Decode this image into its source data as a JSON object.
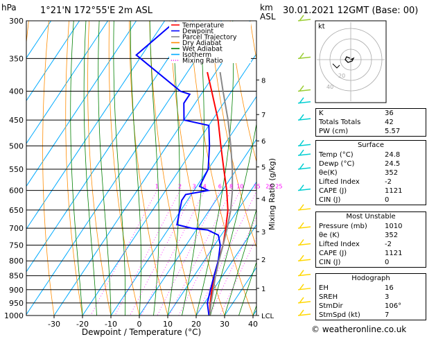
{
  "header": {
    "hpa_label": "hPa",
    "location": "1°21'N  172°55'E  2m  ASL",
    "km_label": "km",
    "asl_label": "ASL",
    "datetime": "30.01.2021  12GMT  (Base: 00)",
    "copyright": "© weatheronline.co.uk"
  },
  "chart_data": {
    "type": "line",
    "title": "",
    "xlabel": "Dewpoint / Temperature (°C)",
    "ylabel": "hPa",
    "right_label": "Mixing Ratio (g/kg)",
    "x_ticks": [
      -30,
      -20,
      -10,
      0,
      10,
      20,
      30,
      40
    ],
    "xlim": [
      -35,
      40
    ],
    "y_ticks": [
      300,
      350,
      400,
      450,
      500,
      550,
      600,
      650,
      700,
      750,
      800,
      850,
      900,
      950,
      1000
    ],
    "ylim": [
      1000,
      300
    ],
    "km_ticks": [
      {
        "p": 382,
        "label": "8"
      },
      {
        "p": 440,
        "label": "7"
      },
      {
        "p": 490,
        "label": "6"
      },
      {
        "p": 545,
        "label": "5"
      },
      {
        "p": 620,
        "label": "4"
      },
      {
        "p": 710,
        "label": "3"
      },
      {
        "p": 795,
        "label": "2"
      },
      {
        "p": 895,
        "label": "1"
      },
      {
        "p": 1000,
        "label": "LCL"
      }
    ],
    "mixing_ratio_labels": [
      "1",
      "2",
      "3",
      "4",
      "6",
      "8",
      "10",
      "15",
      "20",
      "25"
    ],
    "legend": [
      {
        "name": "Temperature",
        "color": "#ff0000"
      },
      {
        "name": "Dewpoint",
        "color": "#0000ff"
      },
      {
        "name": "Parcel Trajectory",
        "color": "#888888"
      },
      {
        "name": "Dry Adiabat",
        "color": "#ff8c00"
      },
      {
        "name": "Wet Adiabat",
        "color": "#008000"
      },
      {
        "name": "Isotherm",
        "color": "#00aaff"
      },
      {
        "name": "Mixing Ratio",
        "color": "#ff00ff"
      }
    ],
    "series": [
      {
        "name": "Temperature",
        "color": "#ff0000",
        "p": [
          1000,
          950,
          900,
          850,
          800,
          750,
          700,
          650,
          600,
          550,
          500,
          450,
          400,
          370
        ],
        "t": [
          24.8,
          22,
          19.5,
          17,
          15,
          13,
          10,
          6.5,
          1.5,
          -4.5,
          -11,
          -18,
          -27,
          -33
        ]
      },
      {
        "name": "Dewpoint",
        "color": "#0000ff",
        "p": [
          1000,
          950,
          900,
          850,
          800,
          750,
          720,
          705,
          700,
          690,
          625,
          610,
          600,
          590,
          550,
          500,
          460,
          450,
          420,
          405,
          400,
          345,
          300
        ],
        "t": [
          24.5,
          21,
          19,
          17,
          15,
          12,
          9,
          4,
          -2,
          -8,
          -12,
          -12,
          -5,
          -9,
          -10,
          -15,
          -20,
          -30,
          -34,
          -34,
          -38,
          -62,
          -56
        ]
      },
      {
        "name": "Parcel Trajectory",
        "color": "#888888",
        "p": [
          1000,
          950,
          900,
          850,
          800,
          750,
          700,
          650,
          600,
          550,
          500,
          450,
          400,
          370
        ],
        "t": [
          24.8,
          22.3,
          20,
          17.5,
          15.2,
          13,
          10.5,
          7.5,
          3.5,
          -1.5,
          -7.5,
          -14.5,
          -23,
          -28.5
        ]
      }
    ]
  },
  "hodograph": {
    "label": "kt",
    "ring_labels": [
      "20",
      "40"
    ]
  },
  "indices": [
    {
      "label": "K",
      "value": "36"
    },
    {
      "label": "Totals Totals",
      "value": "42"
    },
    {
      "label": "PW (cm)",
      "value": "5.57"
    }
  ],
  "surface": {
    "title": "Surface",
    "rows": [
      {
        "label": "Temp (°C)",
        "value": "24.8"
      },
      {
        "label": "Dewp (°C)",
        "value": "24.5"
      },
      {
        "label": "θe(K)",
        "value": "352"
      },
      {
        "label": "Lifted Index",
        "value": "-2"
      },
      {
        "label": "CAPE (J)",
        "value": "1121"
      },
      {
        "label": "CIN (J)",
        "value": "0"
      }
    ]
  },
  "most_unstable": {
    "title": "Most Unstable",
    "rows": [
      {
        "label": "Pressure (mb)",
        "value": "1010"
      },
      {
        "label": "θe (K)",
        "value": "352"
      },
      {
        "label": "Lifted Index",
        "value": "-2"
      },
      {
        "label": "CAPE (J)",
        "value": "1121"
      },
      {
        "label": "CIN (J)",
        "value": "0"
      }
    ]
  },
  "hodograph_box": {
    "title": "Hodograph",
    "rows": [
      {
        "label": "EH",
        "value": "16"
      },
      {
        "label": "SREH",
        "value": "3"
      },
      {
        "label": "StmDir",
        "value": "106°"
      },
      {
        "label": "StmSpd (kt)",
        "value": "7"
      }
    ]
  }
}
